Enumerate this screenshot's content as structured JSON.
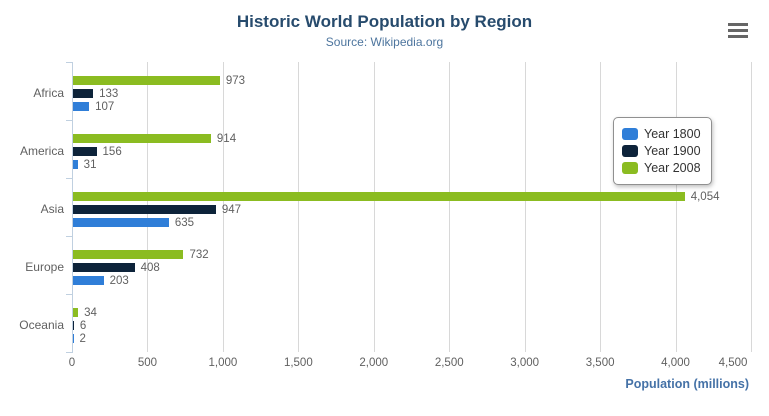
{
  "header": {
    "title": "Historic World Population by Region",
    "subtitle": "Source: Wikipedia.org"
  },
  "toolbar": {
    "menu_icon": "hamburger-context-menu"
  },
  "colors": {
    "title": "#274b6d",
    "subtitle": "#4d759e",
    "axis_title": "#4572a7",
    "axis_line": "#c0d0e0",
    "gridline": "#d8d8d8",
    "label_gray": "#606060"
  },
  "chart_data": {
    "type": "bar",
    "orientation": "horizontal",
    "title": "Historic World Population by Region",
    "subtitle": "Source: Wikipedia.org",
    "categories": [
      "Africa",
      "America",
      "Asia",
      "Europe",
      "Oceania"
    ],
    "series": [
      {
        "name": "Year 1800",
        "color": "#2f7ed8",
        "values": [
          107,
          31,
          635,
          203,
          2
        ]
      },
      {
        "name": "Year 1900",
        "color": "#0d233a",
        "values": [
          133,
          156,
          947,
          408,
          6
        ]
      },
      {
        "name": "Year 2008",
        "color": "#8bbc21",
        "values": [
          973,
          914,
          4054,
          732,
          34
        ]
      }
    ],
    "bar_order_top_to_bottom": [
      "Year 2008",
      "Year 1900",
      "Year 1800"
    ],
    "data_labels_shown": true,
    "xlabel": "Population (millions)",
    "ylabel": "",
    "xlim": [
      0,
      4500
    ],
    "xticks": [
      0,
      500,
      1000,
      1500,
      2000,
      2500,
      3000,
      3500,
      4000,
      4500
    ],
    "grid": true,
    "legend": {
      "position": "right",
      "items": [
        "Year 1800",
        "Year 1900",
        "Year 2008"
      ]
    }
  }
}
